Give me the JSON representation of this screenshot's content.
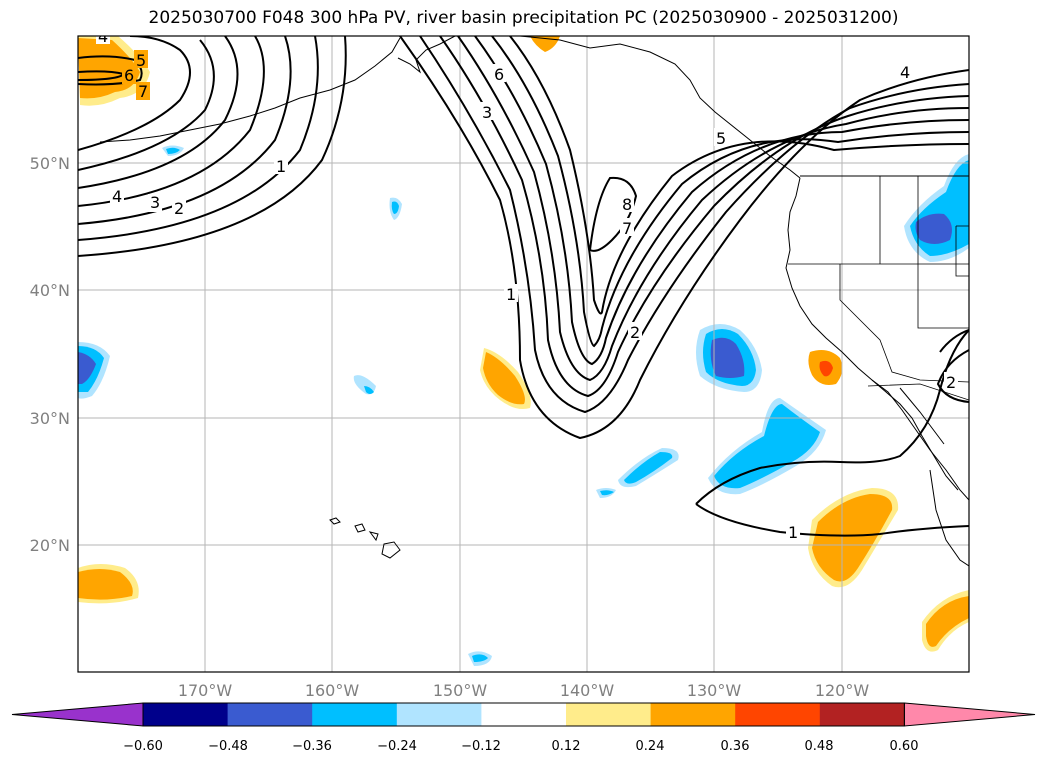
{
  "title": "2025030700 F048 300 hPa PV, river basin precipitation PC (2025030900 - 2025031200)",
  "map": {
    "lon_ticks": [
      "170°W",
      "160°W",
      "150°W",
      "140°W",
      "130°W",
      "120°W"
    ],
    "lat_ticks": [
      "50°N",
      "40°N",
      "30°N",
      "20°N"
    ],
    "grid": true
  },
  "contour_labels": [
    {
      "text": "4"
    },
    {
      "text": "5"
    },
    {
      "text": "6"
    },
    {
      "text": "7"
    },
    {
      "text": "1"
    },
    {
      "text": "4"
    },
    {
      "text": "3"
    },
    {
      "text": "2"
    },
    {
      "text": "6"
    },
    {
      "text": "3"
    },
    {
      "text": "1"
    },
    {
      "text": "8"
    },
    {
      "text": "7"
    },
    {
      "text": "2"
    },
    {
      "text": "5"
    },
    {
      "text": "4"
    },
    {
      "text": "2"
    },
    {
      "text": "1"
    }
  ],
  "colorbar": {
    "ticks": [
      "−0.60",
      "−0.48",
      "−0.36",
      "−0.24",
      "−0.12",
      "0.12",
      "0.24",
      "0.36",
      "0.48",
      "0.60"
    ],
    "colors": [
      "#9932cc",
      "#00008b",
      "#3a5bd0",
      "#00bfff",
      "#b0e4ff",
      "#ffffff",
      "#ffec8b",
      "#ffa500",
      "#ff4500",
      "#b22222",
      "#ff88aa"
    ]
  }
}
